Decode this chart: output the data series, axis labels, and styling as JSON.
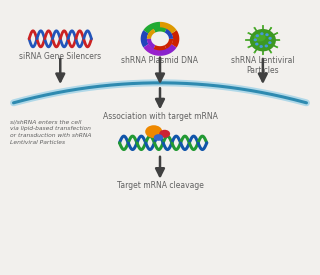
{
  "bg_color": "#f2f0ed",
  "labels": {
    "siRNA": "siRNA Gene Silencers",
    "shRNA_plasmid": "shRNA Plasmid DNA",
    "shRNA_lentiviral": "shRNA Lentiviral\nParticles",
    "association": "Association with target mRNA",
    "cleavage": "Target mRNA cleavage",
    "side_note": "si/shRNA enters the cell\nvia lipid-based transfection\nor transduction with shRNA\nLentiviral Particles"
  },
  "arrow_color": "#404040",
  "arc_color": "#2e8ab0",
  "arc_color2": "#b0d8e8",
  "text_color": "#606060",
  "font_size": 5.5
}
